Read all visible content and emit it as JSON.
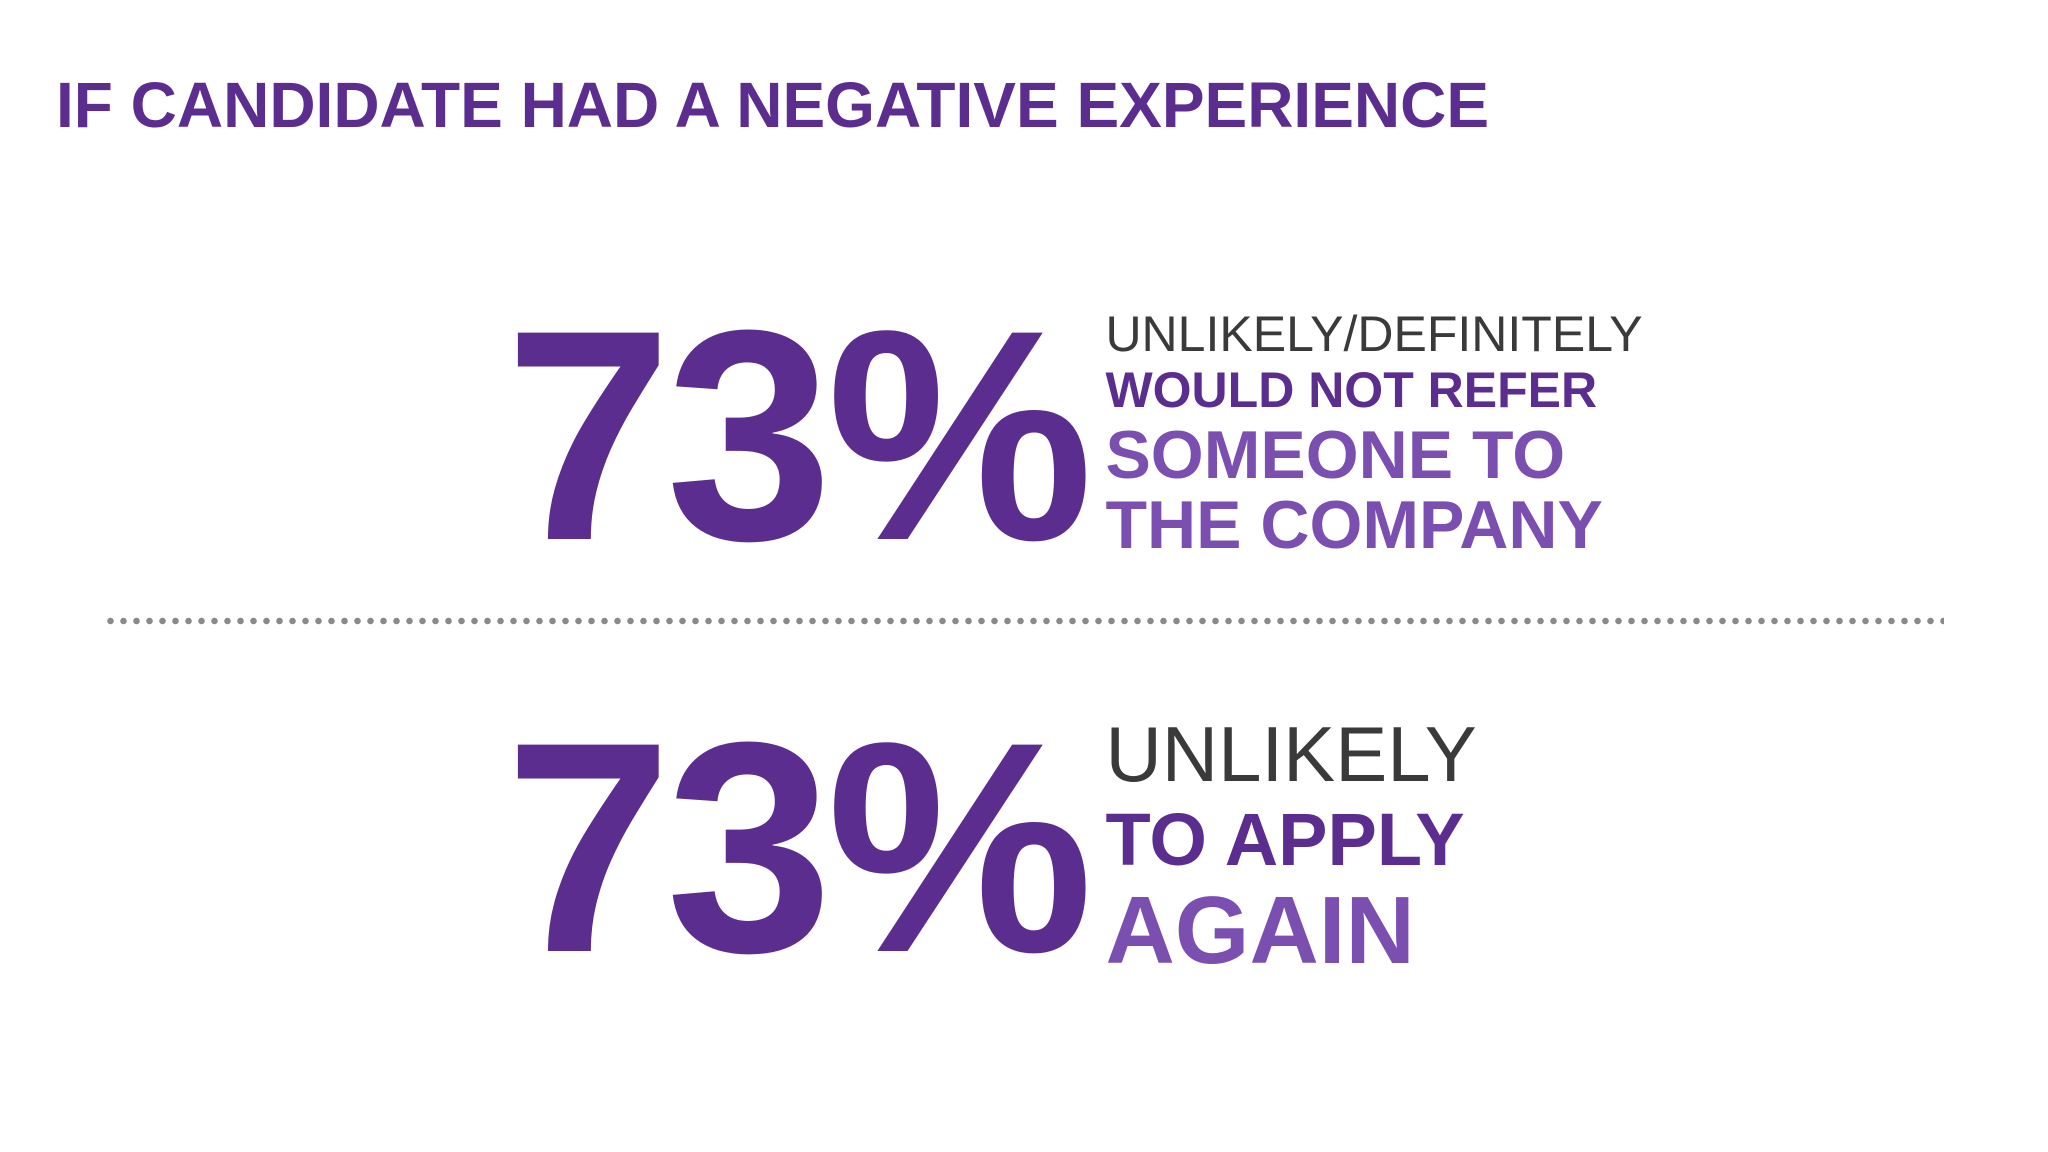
{
  "title": "IF CANDIDATE HAD A NEGATIVE EXPERIENCE",
  "stats": [
    {
      "value": "73%",
      "lines": [
        "UNLIKELY/DEFINITELY",
        "WOULD NOT REFER",
        "SOMEONE TO",
        "THE COMPANY"
      ]
    },
    {
      "value": "73%",
      "lines": [
        "UNLIKELY",
        "TO APPLY",
        "AGAIN"
      ]
    }
  ],
  "colors": {
    "accent": "#5b2d8e",
    "accent_light": "#7a4fb0",
    "text_dark": "#3a3a3a",
    "divider": "#8a8a8a"
  }
}
